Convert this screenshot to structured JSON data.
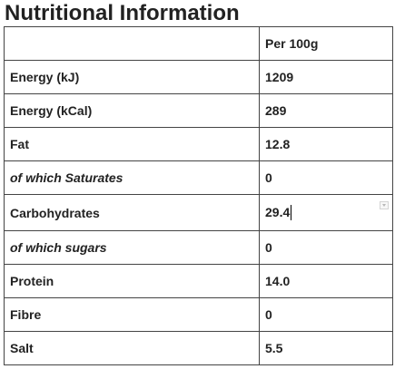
{
  "title": "Nutritional Information",
  "table": {
    "header": {
      "label": "",
      "value": "Per 100g"
    },
    "rows": [
      {
        "label": "Energy (kJ)",
        "value": "1209",
        "italic": false
      },
      {
        "label": "Energy (kCal)",
        "value": "289",
        "italic": false
      },
      {
        "label": "Fat",
        "value": "12.8",
        "italic": false
      },
      {
        "label": "of which Saturates",
        "value": "0",
        "italic": true
      },
      {
        "label": "Carbohydrates",
        "value": "29.4",
        "italic": false
      },
      {
        "label": "of which sugars",
        "value": "0",
        "italic": true
      },
      {
        "label": "Protein",
        "value": "14.0",
        "italic": false
      },
      {
        "label": "Fibre",
        "value": "0",
        "italic": false
      },
      {
        "label": "Salt",
        "value": "5.5",
        "italic": false
      }
    ]
  },
  "colors": {
    "text": "#222222",
    "border": "#444444",
    "background": "#ffffff"
  },
  "icons": {
    "dropdown_handle": "chevron-down-icon"
  }
}
